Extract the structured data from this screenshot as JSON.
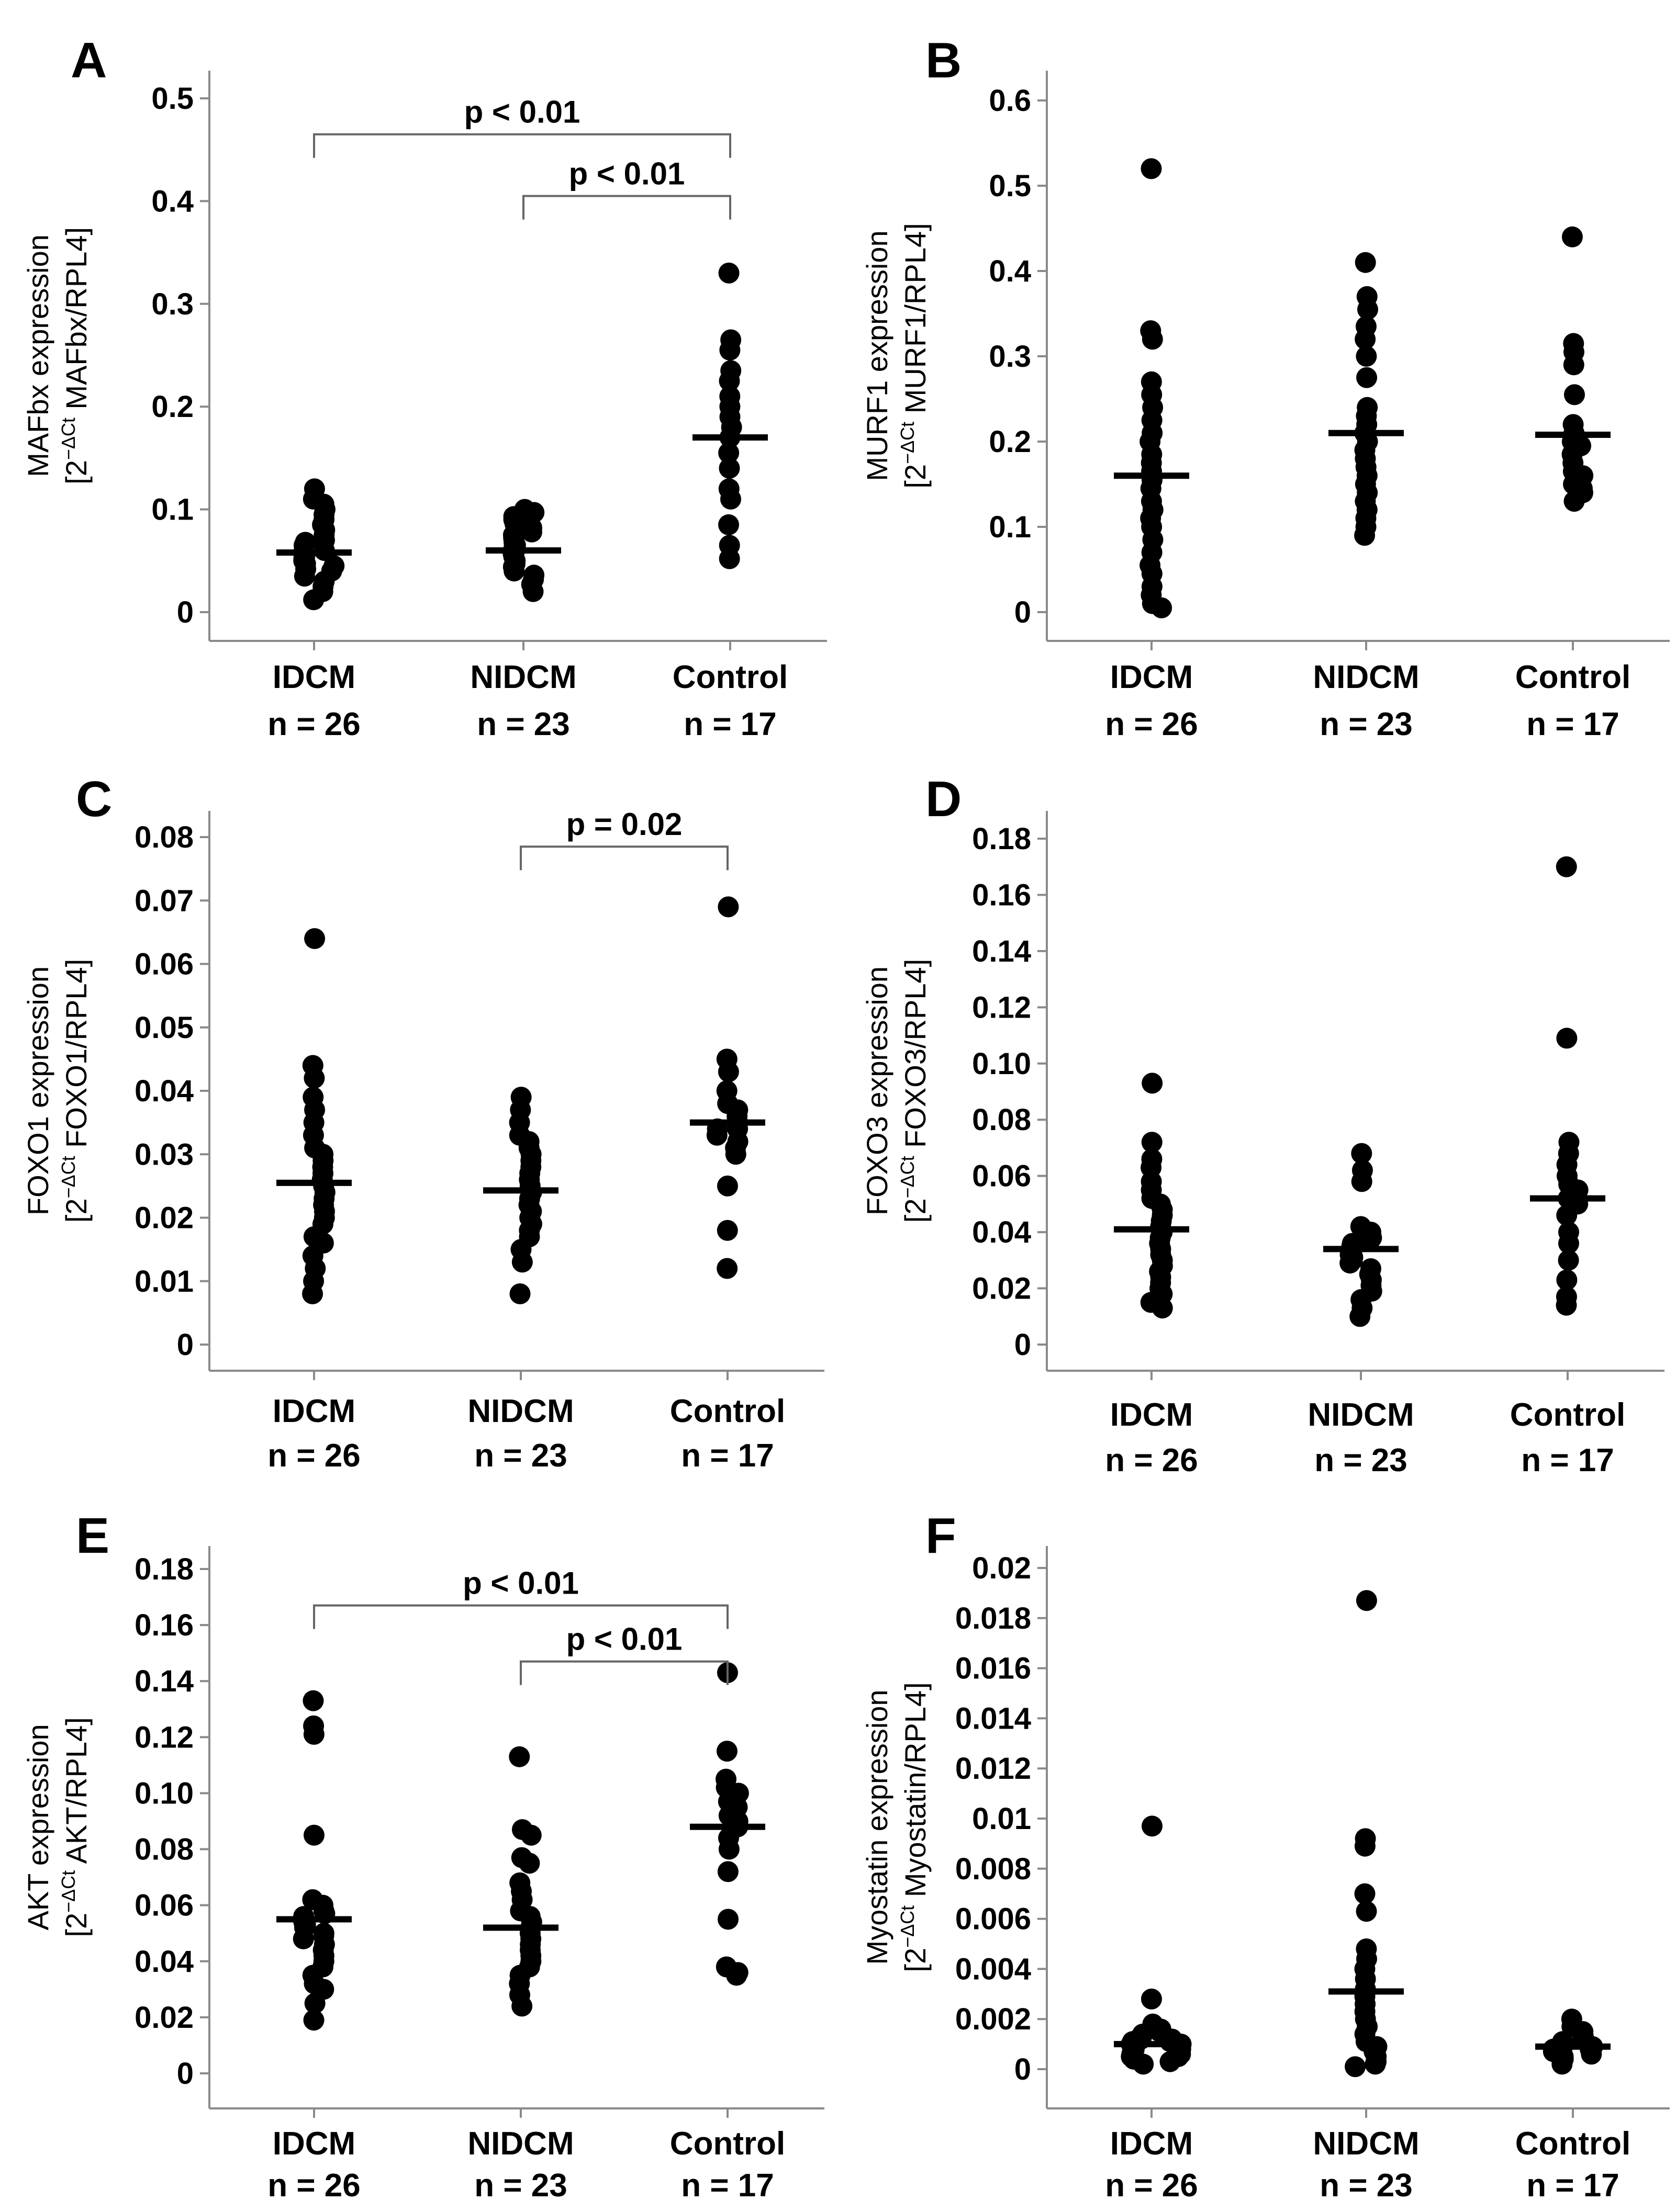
{
  "chart_data": [
    {
      "panel": "A",
      "type": "scatter",
      "ylabel_line1": "MAFbx expression",
      "ylabel_line2_prefix": "[2",
      "ylabel_sup": "−ΔCt",
      "ylabel_line2_suffix": " MAFbx/RPL4]",
      "yticks": [
        "0",
        "0.1",
        "0.2",
        "0.3",
        "0.4",
        "0.5"
      ],
      "ylim": [
        0,
        0.5
      ],
      "groups": [
        {
          "name": "IDCM",
          "n_label": "n = 26",
          "median": 0.058,
          "values": [
            0.12,
            0.11,
            0.105,
            0.1,
            0.095,
            0.09,
            0.085,
            0.08,
            0.075,
            0.07,
            0.068,
            0.065,
            0.06,
            0.058,
            0.055,
            0.052,
            0.05,
            0.047,
            0.045,
            0.042,
            0.04,
            0.035,
            0.03,
            0.025,
            0.02,
            0.012
          ]
        },
        {
          "name": "NIDCM",
          "n_label": "n = 23",
          "median": 0.06,
          "values": [
            0.1,
            0.097,
            0.093,
            0.09,
            0.086,
            0.082,
            0.078,
            0.075,
            0.072,
            0.068,
            0.065,
            0.062,
            0.06,
            0.057,
            0.054,
            0.05,
            0.047,
            0.044,
            0.04,
            0.036,
            0.032,
            0.027,
            0.02
          ]
        },
        {
          "name": "Control",
          "n_label": "n = 17",
          "median": 0.17,
          "values": [
            0.33,
            0.265,
            0.255,
            0.235,
            0.225,
            0.21,
            0.2,
            0.19,
            0.18,
            0.17,
            0.155,
            0.14,
            0.12,
            0.11,
            0.085,
            0.065,
            0.052
          ]
        }
      ],
      "brackets": [
        {
          "from": 0,
          "to": 2,
          "label": "p < 0.01",
          "y": 0.465
        },
        {
          "from": 1,
          "to": 2,
          "label": "p < 0.01",
          "y": 0.405
        }
      ]
    },
    {
      "panel": "B",
      "type": "scatter",
      "ylabel_line1": "MURF1 expression",
      "ylabel_line2_prefix": "[2",
      "ylabel_sup": "−ΔCt",
      "ylabel_line2_suffix": " MURF1/RPL4]",
      "yticks": [
        "0",
        "0.1",
        "0.2",
        "0.3",
        "0.4",
        "0.5",
        "0.6"
      ],
      "ylim": [
        0,
        0.6
      ],
      "groups": [
        {
          "name": "IDCM",
          "n_label": "n = 26",
          "median": 0.16,
          "values": [
            0.52,
            0.33,
            0.32,
            0.27,
            0.255,
            0.24,
            0.225,
            0.21,
            0.2,
            0.185,
            0.175,
            0.165,
            0.155,
            0.145,
            0.13,
            0.12,
            0.11,
            0.1,
            0.085,
            0.07,
            0.055,
            0.045,
            0.03,
            0.02,
            0.01,
            0.005
          ]
        },
        {
          "name": "NIDCM",
          "n_label": "n = 23",
          "median": 0.21,
          "values": [
            0.41,
            0.37,
            0.355,
            0.335,
            0.32,
            0.3,
            0.275,
            0.24,
            0.23,
            0.22,
            0.21,
            0.2,
            0.19,
            0.18,
            0.17,
            0.16,
            0.15,
            0.14,
            0.13,
            0.12,
            0.11,
            0.1,
            0.09
          ]
        },
        {
          "name": "Control",
          "n_label": "n = 17",
          "median": 0.208,
          "values": [
            0.44,
            0.315,
            0.305,
            0.29,
            0.255,
            0.22,
            0.21,
            0.2,
            0.195,
            0.185,
            0.175,
            0.165,
            0.16,
            0.15,
            0.145,
            0.14,
            0.13
          ]
        }
      ],
      "brackets": []
    },
    {
      "panel": "C",
      "type": "scatter",
      "ylabel_line1": "FOXO1 expression",
      "ylabel_line2_prefix": "[2",
      "ylabel_sup": "−ΔCt",
      "ylabel_line2_suffix": " FOXO1/RPL4]",
      "yticks": [
        "0",
        "0.01",
        "0.02",
        "0.03",
        "0.04",
        "0.05",
        "0.06",
        "0.07",
        "0.08"
      ],
      "ylim": [
        0,
        0.08
      ],
      "groups": [
        {
          "name": "IDCM",
          "n_label": "n = 26",
          "median": 0.0255,
          "values": [
            0.064,
            0.044,
            0.042,
            0.039,
            0.037,
            0.035,
            0.033,
            0.031,
            0.03,
            0.029,
            0.028,
            0.027,
            0.026,
            0.025,
            0.024,
            0.023,
            0.022,
            0.021,
            0.02,
            0.019,
            0.017,
            0.016,
            0.014,
            0.012,
            0.01,
            0.008
          ]
        },
        {
          "name": "NIDCM",
          "n_label": "n = 23",
          "median": 0.0243,
          "values": [
            0.039,
            0.037,
            0.035,
            0.033,
            0.032,
            0.031,
            0.03,
            0.029,
            0.028,
            0.027,
            0.026,
            0.025,
            0.024,
            0.023,
            0.022,
            0.021,
            0.02,
            0.019,
            0.018,
            0.017,
            0.015,
            0.013,
            0.008
          ]
        },
        {
          "name": "Control",
          "n_label": "n = 17",
          "median": 0.035,
          "values": [
            0.069,
            0.045,
            0.043,
            0.04,
            0.038,
            0.037,
            0.036,
            0.035,
            0.034,
            0.034,
            0.033,
            0.032,
            0.031,
            0.03,
            0.025,
            0.018,
            0.012
          ]
        }
      ],
      "brackets": [
        {
          "from": 1,
          "to": 2,
          "label": "p = 0.02",
          "y": 0.0785
        }
      ]
    },
    {
      "panel": "D",
      "type": "scatter",
      "ylabel_line1": "FOXO3 expression",
      "ylabel_line2_prefix": "[2",
      "ylabel_sup": "−ΔCt",
      "ylabel_line2_suffix": " FOXO3/RPL4]",
      "yticks": [
        "0",
        "0.02",
        "0.04",
        "0.06",
        "0.08",
        "0.10",
        "0.12",
        "0.14",
        "0.16",
        "0.18"
      ],
      "ylim": [
        0,
        0.18
      ],
      "groups": [
        {
          "name": "IDCM",
          "n_label": "n = 26",
          "median": 0.041,
          "values": [
            0.093,
            0.072,
            0.066,
            0.063,
            0.058,
            0.055,
            0.052,
            0.05,
            0.048,
            0.046,
            0.044,
            0.042,
            0.04,
            0.038,
            0.036,
            0.034,
            0.032,
            0.03,
            0.028,
            0.026,
            0.024,
            0.022,
            0.02,
            0.018,
            0.015,
            0.013
          ]
        },
        {
          "name": "NIDCM",
          "n_label": "n = 23",
          "median": 0.034,
          "values": [
            0.068,
            0.062,
            0.058,
            0.042,
            0.04,
            0.038,
            0.037,
            0.036,
            0.035,
            0.034,
            0.033,
            0.032,
            0.031,
            0.03,
            0.029,
            0.027,
            0.025,
            0.023,
            0.021,
            0.019,
            0.016,
            0.013,
            0.01
          ]
        },
        {
          "name": "Control",
          "n_label": "n = 17",
          "median": 0.052,
          "values": [
            0.17,
            0.109,
            0.072,
            0.068,
            0.064,
            0.06,
            0.057,
            0.055,
            0.052,
            0.05,
            0.046,
            0.04,
            0.036,
            0.03,
            0.023,
            0.017,
            0.014
          ]
        }
      ],
      "brackets": []
    },
    {
      "panel": "E",
      "type": "scatter",
      "ylabel_line1": "AKT expression",
      "ylabel_line2_prefix": "[2",
      "ylabel_sup": "−ΔCt",
      "ylabel_line2_suffix": " AKT/RPL4]",
      "yticks": [
        "0",
        "0.02",
        "0.04",
        "0.06",
        "0.08",
        "0.10",
        "0.12",
        "0.14",
        "0.16",
        "0.18"
      ],
      "ylim": [
        0,
        0.18
      ],
      "groups": [
        {
          "name": "IDCM",
          "n_label": "n = 26",
          "median": 0.055,
          "values": [
            0.133,
            0.124,
            0.121,
            0.085,
            0.062,
            0.06,
            0.058,
            0.057,
            0.056,
            0.055,
            0.054,
            0.053,
            0.052,
            0.05,
            0.049,
            0.048,
            0.046,
            0.044,
            0.042,
            0.04,
            0.038,
            0.035,
            0.032,
            0.03,
            0.025,
            0.019
          ]
        },
        {
          "name": "NIDCM",
          "n_label": "n = 23",
          "median": 0.052,
          "values": [
            0.113,
            0.087,
            0.085,
            0.077,
            0.075,
            0.068,
            0.065,
            0.062,
            0.058,
            0.056,
            0.054,
            0.052,
            0.05,
            0.048,
            0.046,
            0.044,
            0.042,
            0.04,
            0.038,
            0.035,
            0.032,
            0.028,
            0.024
          ]
        },
        {
          "name": "Control",
          "n_label": "n = 17",
          "median": 0.088,
          "values": [
            0.143,
            0.115,
            0.105,
            0.102,
            0.1,
            0.097,
            0.095,
            0.092,
            0.09,
            0.088,
            0.084,
            0.08,
            0.072,
            0.055,
            0.038,
            0.036,
            0.035
          ]
        }
      ],
      "brackets": [
        {
          "from": 0,
          "to": 2,
          "label": "p < 0.01",
          "y": 0.167
        },
        {
          "from": 1,
          "to": 2,
          "label": "p < 0.01",
          "y": 0.147
        }
      ]
    },
    {
      "panel": "F",
      "type": "scatter",
      "ylabel_line1": "Myostatin expression",
      "ylabel_line2_prefix": "[2",
      "ylabel_sup": "−ΔCt",
      "ylabel_line2_suffix": " Myostatin/RPL4]",
      "yticks": [
        "0",
        "0.002",
        "0.004",
        "0.006",
        "0.008",
        "0.01",
        "0.012",
        "0.014",
        "0.016",
        "0.018",
        "0.02"
      ],
      "ylim": [
        0,
        0.02
      ],
      "groups": [
        {
          "name": "IDCM",
          "n_label": "n = 26",
          "median": 0.001,
          "values": [
            0.0097,
            0.0028,
            0.0018,
            0.0016,
            0.0015,
            0.0014,
            0.0013,
            0.0012,
            0.0012,
            0.0011,
            0.0011,
            0.001,
            0.001,
            0.0009,
            0.0009,
            0.0008,
            0.0008,
            0.0007,
            0.0007,
            0.0006,
            0.0006,
            0.0005,
            0.0005,
            0.0004,
            0.0003,
            0.0002
          ]
        },
        {
          "name": "NIDCM",
          "n_label": "n = 23",
          "median": 0.0031,
          "values": [
            0.0187,
            0.0092,
            0.0089,
            0.007,
            0.0063,
            0.0048,
            0.0044,
            0.004,
            0.0036,
            0.0032,
            0.0029,
            0.0026,
            0.0023,
            0.002,
            0.0017,
            0.0014,
            0.0011,
            0.0009,
            0.0007,
            0.0005,
            0.0003,
            0.0002,
            0.0001
          ]
        },
        {
          "name": "Control",
          "n_label": "n = 17",
          "median": 0.0009,
          "values": [
            0.002,
            0.0017,
            0.0015,
            0.0013,
            0.0012,
            0.0011,
            0.001,
            0.0009,
            0.0009,
            0.0008,
            0.0008,
            0.0007,
            0.0006,
            0.0005,
            0.0004,
            0.0003,
            0.0002
          ]
        }
      ],
      "brackets": []
    }
  ]
}
